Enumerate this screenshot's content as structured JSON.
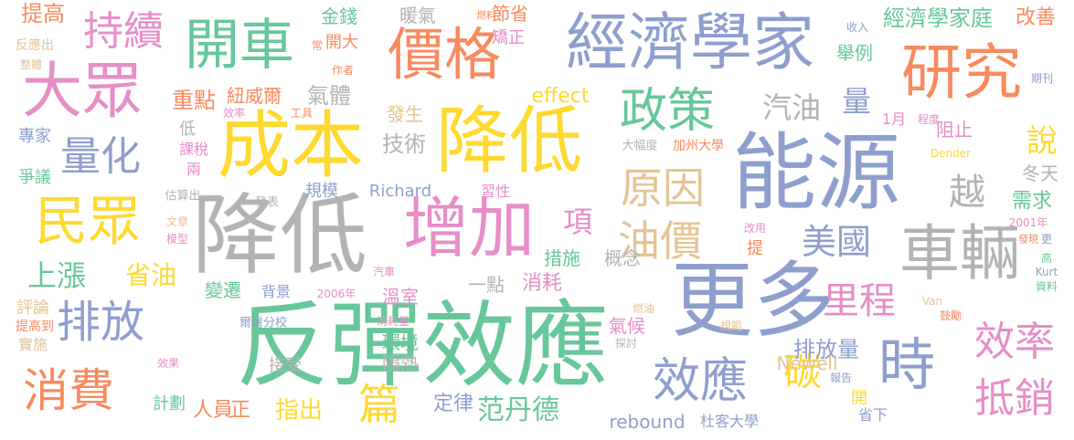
{
  "palette": {
    "green": "#67c79a",
    "blue": "#8e9fce",
    "orange": "#f88a5e",
    "pink": "#e68ec8",
    "lime": "#a6d854",
    "yellow": "#ffd92f",
    "tan": "#e5c494",
    "gray": "#b3b3b3"
  },
  "words": [
    {
      "text": "反彈效應",
      "color": "green"
    },
    {
      "text": "降低",
      "color": "gray"
    },
    {
      "text": "成本",
      "color": "yellow"
    },
    {
      "text": "降低",
      "color": "yellow"
    },
    {
      "text": "能源",
      "color": "blue"
    },
    {
      "text": "經濟學家",
      "color": "blue"
    },
    {
      "text": "更多",
      "color": "blue"
    },
    {
      "text": "增加",
      "color": "pink"
    },
    {
      "text": "價格",
      "color": "orange"
    },
    {
      "text": "開車",
      "color": "green"
    },
    {
      "text": "研究",
      "color": "orange"
    },
    {
      "text": "大眾",
      "color": "pink"
    },
    {
      "text": "車輛",
      "color": "gray"
    },
    {
      "text": "民眾",
      "color": "yellow"
    },
    {
      "text": "排放",
      "color": "blue"
    },
    {
      "text": "消費",
      "color": "orange"
    },
    {
      "text": "時",
      "color": "blue"
    },
    {
      "text": "效應",
      "color": "blue"
    },
    {
      "text": "量化",
      "color": "blue"
    },
    {
      "text": "持續",
      "color": "pink"
    },
    {
      "text": "政策",
      "color": "green"
    },
    {
      "text": "原因",
      "color": "tan"
    },
    {
      "text": "油價",
      "color": "tan"
    },
    {
      "text": "效率",
      "color": "pink"
    },
    {
      "text": "抵銷",
      "color": "pink"
    },
    {
      "text": "碳",
      "color": "yellow"
    },
    {
      "text": "里程",
      "color": "pink"
    },
    {
      "text": "美國",
      "color": "blue"
    },
    {
      "text": "篇",
      "color": "yellow"
    },
    {
      "text": "越",
      "color": "gray"
    },
    {
      "text": "說",
      "color": "yellow"
    },
    {
      "text": "汽油",
      "color": "gray"
    },
    {
      "text": "量",
      "color": "blue"
    },
    {
      "text": "項",
      "color": "pink"
    },
    {
      "text": "上漲",
      "color": "green"
    },
    {
      "text": "省油",
      "color": "yellow"
    },
    {
      "text": "范丹德",
      "color": "green"
    },
    {
      "text": "指出",
      "color": "yellow"
    },
    {
      "text": "排放量",
      "color": "blue"
    },
    {
      "text": "提高",
      "color": "orange"
    },
    {
      "text": "重點",
      "color": "orange"
    },
    {
      "text": "氣體",
      "color": "gray"
    },
    {
      "text": "紐威爾",
      "color": "orange"
    },
    {
      "text": "技術",
      "color": "gray"
    },
    {
      "text": "發生",
      "color": "tan"
    },
    {
      "text": "effect",
      "color": "yellow"
    },
    {
      "text": "rebound",
      "color": "blue"
    },
    {
      "text": "Richard",
      "color": "blue"
    },
    {
      "text": "Newell",
      "color": "tan"
    },
    {
      "text": "經濟學家庭",
      "color": "green"
    },
    {
      "text": "改善",
      "color": "orange"
    },
    {
      "text": "需求",
      "color": "green"
    },
    {
      "text": "阻止",
      "color": "pink"
    },
    {
      "text": "冬天",
      "color": "gray"
    },
    {
      "text": "舉例",
      "color": "green"
    },
    {
      "text": "節省",
      "color": "orange"
    },
    {
      "text": "暖氣",
      "color": "gray"
    },
    {
      "text": "金錢",
      "color": "green"
    },
    {
      "text": "開大",
      "color": "orange"
    },
    {
      "text": "矯正",
      "color": "pink"
    },
    {
      "text": "措施",
      "color": "green"
    },
    {
      "text": "消耗",
      "color": "pink"
    },
    {
      "text": "概念",
      "color": "gray"
    },
    {
      "text": "一點",
      "color": "gray"
    },
    {
      "text": "溫室",
      "color": "pink"
    },
    {
      "text": "氣候",
      "color": "pink"
    },
    {
      "text": "環境",
      "color": "green"
    },
    {
      "text": "隔熱",
      "color": "gray"
    },
    {
      "text": "定律",
      "color": "blue"
    },
    {
      "text": "人員",
      "color": "orange"
    },
    {
      "text": "正",
      "color": "orange"
    },
    {
      "text": "計劃",
      "color": "green"
    },
    {
      "text": "接受",
      "color": "gray"
    },
    {
      "text": "變遷",
      "color": "green"
    },
    {
      "text": "背景",
      "color": "blue"
    },
    {
      "text": "規模",
      "color": "blue"
    },
    {
      "text": "習性",
      "color": "pink"
    },
    {
      "text": "開",
      "color": "yellow"
    },
    {
      "text": "省下",
      "color": "blue"
    },
    {
      "text": "杜客大學",
      "color": "blue"
    },
    {
      "text": "加州大學",
      "color": "orange"
    },
    {
      "text": "大幅度",
      "color": "gray"
    },
    {
      "text": "提",
      "color": "orange"
    },
    {
      "text": "1月",
      "color": "pink"
    },
    {
      "text": "程度",
      "color": "pink"
    },
    {
      "text": "專家",
      "color": "blue"
    },
    {
      "text": "爭議",
      "color": "green"
    },
    {
      "text": "評論",
      "color": "tan"
    },
    {
      "text": "實施",
      "color": "tan"
    },
    {
      "text": "提高到",
      "color": "orange"
    },
    {
      "text": "反應出",
      "color": "tan"
    },
    {
      "text": "整體",
      "color": "tan"
    },
    {
      "text": "課稅",
      "color": "pink"
    },
    {
      "text": "低",
      "color": "gray"
    },
    {
      "text": "兩",
      "color": "pink"
    },
    {
      "text": "估算出",
      "color": "gray"
    },
    {
      "text": "發表",
      "color": "gray"
    },
    {
      "text": "文章",
      "color": "tan"
    },
    {
      "text": "模型",
      "color": "pink"
    },
    {
      "text": "效果",
      "color": "pink"
    },
    {
      "text": "爾灣分校",
      "color": "blue"
    },
    {
      "text": "消耗量",
      "color": "pink"
    },
    {
      "text": "2006年",
      "color": "pink"
    },
    {
      "text": "汽車",
      "color": "pink"
    },
    {
      "text": "燃油",
      "color": "tan"
    },
    {
      "text": "探討",
      "color": "gray"
    },
    {
      "text": "規範",
      "color": "tan"
    },
    {
      "text": "報告",
      "color": "blue"
    },
    {
      "text": "效率",
      "color": "pink"
    },
    {
      "text": "工具",
      "color": "orange"
    },
    {
      "text": "常",
      "color": "orange"
    },
    {
      "text": "作者",
      "color": "orange"
    },
    {
      "text": "燃料",
      "color": "orange"
    },
    {
      "text": "收入",
      "color": "blue"
    },
    {
      "text": "期刊",
      "color": "blue"
    },
    {
      "text": "Dender",
      "color": "yellow"
    },
    {
      "text": "改用",
      "color": "pink"
    },
    {
      "text": "2001年",
      "color": "pink"
    },
    {
      "text": "發現",
      "color": "orange"
    },
    {
      "text": "更",
      "color": "blue"
    },
    {
      "text": "高",
      "color": "green"
    },
    {
      "text": "Kurt",
      "color": "blue"
    },
    {
      "text": "資料",
      "color": "green"
    },
    {
      "text": "Van",
      "color": "tan"
    },
    {
      "text": "鼓勵",
      "color": "orange"
    }
  ]
}
